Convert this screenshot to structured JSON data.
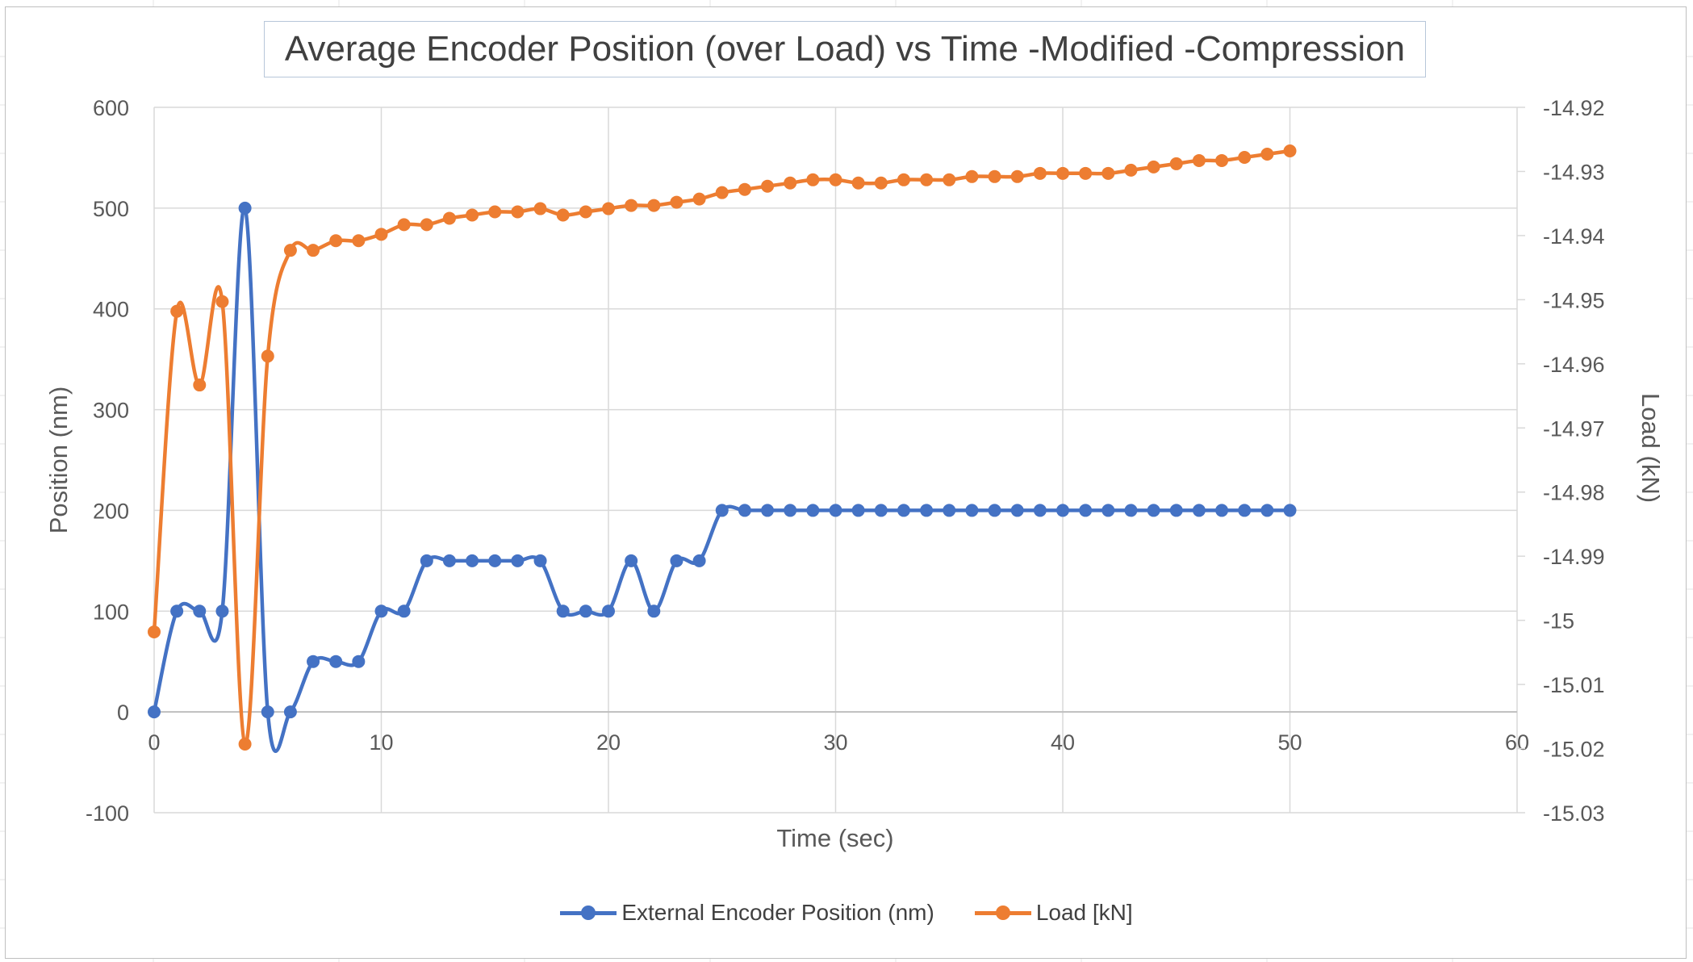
{
  "colors": {
    "series_blue": "#4472c4",
    "series_orange": "#ed7d31",
    "grid": "#d9d9d9",
    "text": "#595959",
    "title": "#404040"
  },
  "chart_data": {
    "type": "line",
    "title": "Average Encoder Position (over Load) vs Time -Modified -Compression",
    "xlabel": "Time (sec)",
    "ylabel": "Position (nm)",
    "y2label": "Load (kN)",
    "xlim": [
      0,
      60
    ],
    "ylim": [
      -100,
      600
    ],
    "y2lim": [
      -15.03,
      -14.92
    ],
    "xticks": [
      "0",
      "10",
      "20",
      "30",
      "40",
      "50",
      "60"
    ],
    "yticks": [
      "600",
      "500",
      "400",
      "300",
      "200",
      "100",
      "0",
      "-100"
    ],
    "y2ticks": [
      "-14.92",
      "-14.93",
      "-14.94",
      "-14.95",
      "-14.96",
      "-14.97",
      "-14.98",
      "-14.99",
      "-15",
      "-15.01",
      "-15.02",
      "-15.03"
    ],
    "grid": true,
    "legend_position": "bottom",
    "series": [
      {
        "name": "External Encoder Position (nm)",
        "axis": "left",
        "color": "#4472c4",
        "x": [
          0,
          1,
          2,
          3,
          4,
          5,
          6,
          7,
          8,
          9,
          10,
          11,
          12,
          13,
          14,
          15,
          16,
          17,
          18,
          19,
          20,
          21,
          22,
          23,
          24,
          25,
          26,
          27,
          28,
          29,
          30,
          31,
          32,
          33,
          34,
          35,
          36,
          37,
          38,
          39,
          40,
          41,
          42,
          43,
          44,
          45,
          46,
          47,
          48,
          49,
          50
        ],
        "values": [
          0,
          100,
          100,
          100,
          500,
          0,
          0,
          50,
          50,
          50,
          100,
          100,
          150,
          150,
          150,
          150,
          150,
          150,
          100,
          100,
          100,
          150,
          100,
          150,
          150,
          200,
          200,
          200,
          200,
          200,
          200,
          200,
          200,
          200,
          200,
          200,
          200,
          200,
          200,
          200,
          200,
          200,
          200,
          200,
          200,
          200,
          200,
          200,
          200,
          200,
          200
        ]
      },
      {
        "name": "Load [kN]",
        "axis": "right",
        "color": "#ed7d31",
        "x": [
          0,
          1,
          2,
          3,
          4,
          5,
          6,
          7,
          8,
          9,
          10,
          11,
          12,
          13,
          14,
          15,
          16,
          17,
          18,
          19,
          20,
          21,
          22,
          23,
          24,
          25,
          26,
          27,
          28,
          29,
          30,
          31,
          32,
          33,
          34,
          35,
          36,
          37,
          38,
          39,
          40,
          41,
          42,
          43,
          44,
          45,
          46,
          47,
          48,
          49,
          50
        ],
        "values": [
          -15.0018,
          -14.9518,
          -14.9633,
          -14.9503,
          -15.0193,
          -14.9588,
          -14.9423,
          -14.9423,
          -14.9408,
          -14.9408,
          -14.9398,
          -14.9383,
          -14.9383,
          -14.9373,
          -14.9368,
          -14.9363,
          -14.9363,
          -14.9358,
          -14.9368,
          -14.9363,
          -14.9358,
          -14.9353,
          -14.9353,
          -14.9348,
          -14.9343,
          -14.9333,
          -14.9328,
          -14.9323,
          -14.9318,
          -14.9313,
          -14.9313,
          -14.9318,
          -14.9318,
          -14.9313,
          -14.9313,
          -14.9313,
          -14.9308,
          -14.9308,
          -14.9308,
          -14.9303,
          -14.9303,
          -14.9303,
          -14.9303,
          -14.9298,
          -14.9293,
          -14.9288,
          -14.9283,
          -14.9283,
          -14.9278,
          -14.9273,
          -14.9268
        ]
      }
    ]
  }
}
